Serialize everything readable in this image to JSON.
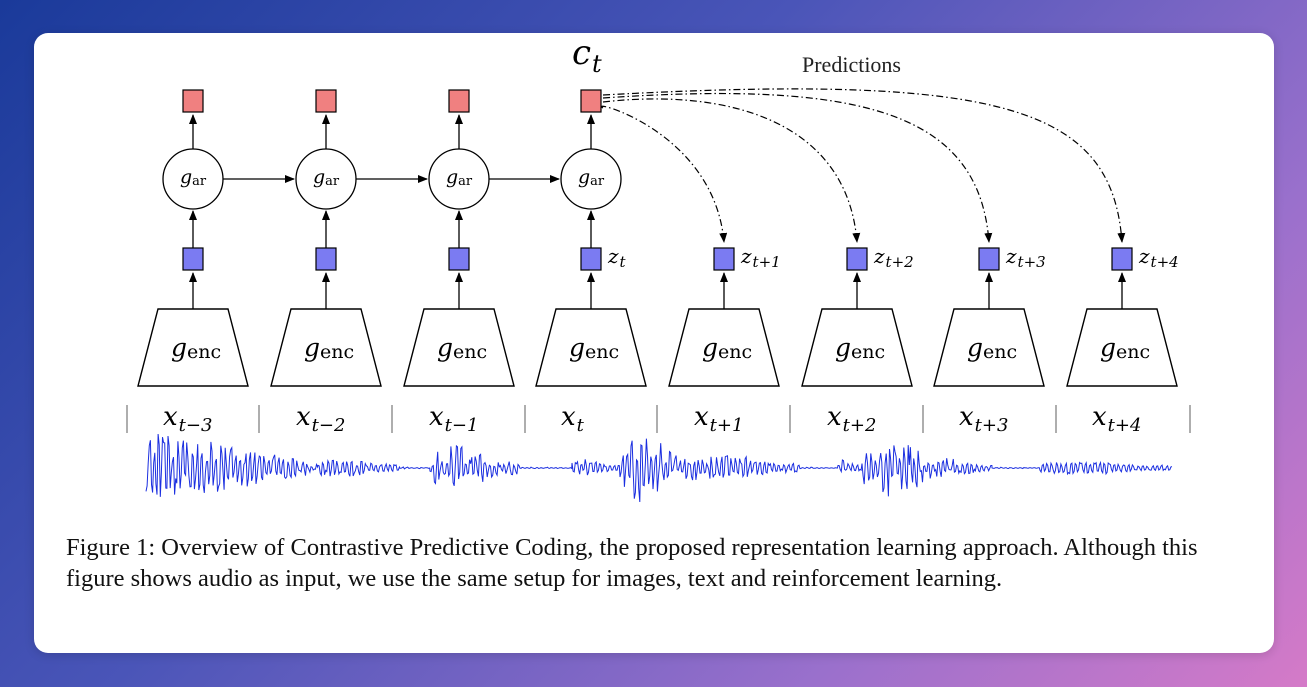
{
  "diagram": {
    "context_label": "c",
    "context_sub": "t",
    "predictions_label": "Predictions",
    "ar_label": "g",
    "ar_sub": "ar",
    "enc_label": "g",
    "enc_sub": "enc",
    "steps": [
      {
        "x_sub": "t−3",
        "z_sub": "",
        "has_ar": true
      },
      {
        "x_sub": "t−2",
        "z_sub": "",
        "has_ar": true
      },
      {
        "x_sub": "t−1",
        "z_sub": "",
        "has_ar": true
      },
      {
        "x_sub": "t",
        "z_sub": "t",
        "has_ar": true
      },
      {
        "x_sub": "t+1",
        "z_sub": "t+1",
        "has_ar": false
      },
      {
        "x_sub": "t+2",
        "z_sub": "t+2",
        "has_ar": false
      },
      {
        "x_sub": "t+3",
        "z_sub": "t+3",
        "has_ar": false
      },
      {
        "x_sub": "t+4",
        "z_sub": "t+4",
        "has_ar": false
      }
    ],
    "x_label": "x",
    "z_label": "z",
    "colors": {
      "context_box": "#f08080",
      "latent_box": "#7b7bf2",
      "waveform": "#1a2ee0"
    }
  },
  "caption": "Figure 1: Overview of Contrastive Predictive Coding, the proposed representation learning approach. Although this figure shows audio as input, we use the same setup for images, text and reinforcement learning."
}
